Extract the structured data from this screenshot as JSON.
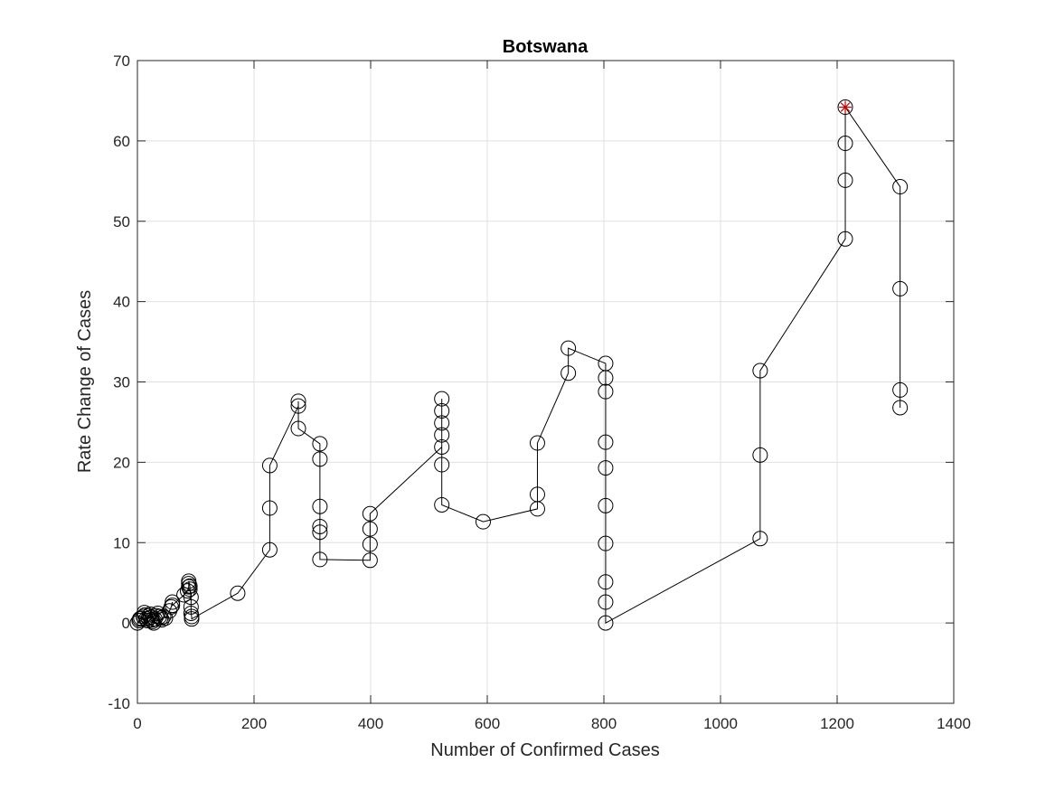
{
  "chart_data": {
    "type": "line",
    "title": "Botswana",
    "xlabel": "Number of Confirmed Cases",
    "ylabel": "Rate Change of Cases",
    "xlim": [
      0,
      1400
    ],
    "ylim": [
      -10,
      70
    ],
    "xticks": [
      0,
      200,
      400,
      600,
      800,
      1000,
      1200,
      1400
    ],
    "yticks": [
      -10,
      0,
      10,
      20,
      30,
      40,
      50,
      60,
      70
    ],
    "xtick_labels": [
      "0",
      "200",
      "400",
      "600",
      "800",
      "1000",
      "1200",
      "1400"
    ],
    "ytick_labels": [
      "-10",
      "0",
      "10",
      "20",
      "30",
      "40",
      "50",
      "60",
      "70"
    ],
    "grid": true,
    "colors": {
      "line": "#000000",
      "marker": "#000000",
      "highlight": "#cc0000",
      "grid": "#e0e0e0",
      "axis": "#262626"
    },
    "series": [
      {
        "marker": "circle",
        "points": [
          [
            0,
            0
          ],
          [
            3,
            0.3
          ],
          [
            4,
            0.5
          ],
          [
            6,
            0.6
          ],
          [
            10,
            0.8
          ],
          [
            12,
            1.3
          ],
          [
            13,
            1.0
          ],
          [
            15,
            0.5
          ],
          [
            17,
            0.3
          ],
          [
            19,
            0.6
          ],
          [
            20,
            0.9
          ],
          [
            22,
            1.1
          ],
          [
            23,
            0.7
          ],
          [
            25,
            0.4
          ],
          [
            26,
            0.2
          ],
          [
            28,
            0.0
          ],
          [
            30,
            0.5
          ],
          [
            33,
            0.9
          ],
          [
            35,
            1.2
          ],
          [
            38,
            0.8
          ],
          [
            40,
            0.6
          ],
          [
            42,
            0.4
          ],
          [
            45,
            0.8
          ],
          [
            48,
            0.6
          ],
          [
            55,
            1.5
          ],
          [
            58,
            2.0
          ],
          [
            60,
            2.6
          ],
          [
            60,
            2.2
          ],
          [
            80,
            3.5
          ],
          [
            86,
            4.0
          ],
          [
            88,
            4.5
          ],
          [
            88,
            4.9
          ],
          [
            88,
            5.2
          ],
          [
            90,
            4.6
          ],
          [
            90,
            4.2
          ],
          [
            92,
            3.2
          ],
          [
            92,
            2.0
          ],
          [
            92,
            1.2
          ],
          [
            93,
            0.8
          ],
          [
            93,
            0.5
          ],
          [
            172,
            3.7
          ],
          [
            227,
            9.1
          ],
          [
            227,
            14.3
          ],
          [
            227,
            19.6
          ],
          [
            276,
            27.0
          ],
          [
            276,
            27.6
          ],
          [
            276,
            24.2
          ],
          [
            313,
            22.3
          ],
          [
            313,
            20.4
          ],
          [
            313,
            14.5
          ],
          [
            313,
            12.0
          ],
          [
            313,
            11.3
          ],
          [
            313,
            7.9
          ],
          [
            399,
            7.8
          ],
          [
            399,
            9.8
          ],
          [
            399,
            11.7
          ],
          [
            399,
            13.6
          ],
          [
            522,
            21.9
          ],
          [
            522,
            23.4
          ],
          [
            522,
            24.9
          ],
          [
            522,
            26.4
          ],
          [
            522,
            27.9
          ],
          [
            522,
            19.7
          ],
          [
            522,
            14.7
          ],
          [
            593,
            12.6
          ],
          [
            686,
            14.2
          ],
          [
            686,
            16.0
          ],
          [
            686,
            22.4
          ],
          [
            739,
            31.1
          ],
          [
            739,
            34.2
          ],
          [
            803,
            32.3
          ],
          [
            803,
            30.5
          ],
          [
            803,
            28.8
          ],
          [
            803,
            22.5
          ],
          [
            803,
            19.3
          ],
          [
            803,
            14.6
          ],
          [
            803,
            9.9
          ],
          [
            803,
            5.1
          ],
          [
            803,
            2.6
          ],
          [
            803,
            0.0
          ],
          [
            1068,
            10.5
          ],
          [
            1068,
            20.9
          ],
          [
            1068,
            31.4
          ],
          [
            1214,
            47.8
          ],
          [
            1214,
            55.1
          ],
          [
            1214,
            59.7
          ],
          [
            1214,
            64.2
          ],
          [
            1308,
            54.3
          ],
          [
            1308,
            41.6
          ],
          [
            1308,
            29.0
          ],
          [
            1308,
            26.8
          ]
        ]
      }
    ],
    "highlight_point": [
      1214,
      64.2
    ]
  }
}
